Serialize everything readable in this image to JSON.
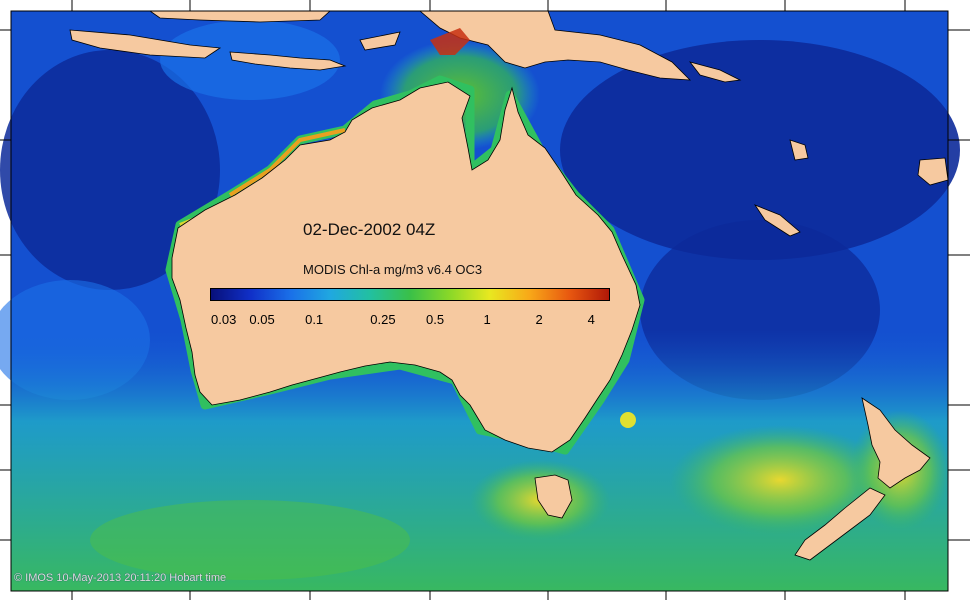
{
  "title": {
    "date": "02-Dec-2002 04Z",
    "product": "MODIS Chl-a mg/m3 v6.4 OC3"
  },
  "colorbar": {
    "ticks": [
      "0.03",
      "0.05",
      "0.1",
      "0.25",
      "0.5",
      "1",
      "2",
      "4"
    ],
    "stops": [
      "#08107a",
      "#1030c8",
      "#1a70e8",
      "#20a8e0",
      "#22c0a0",
      "#3ac048",
      "#8ad828",
      "#e8e820",
      "#f8a818",
      "#e85810",
      "#b01808"
    ]
  },
  "credit": "© IMOS 10-May-2013 20:11:20 Hobart time",
  "colors": {
    "land": "#f6c9a0",
    "ocean_deep": "#0c2a9a",
    "ocean_mid": "#1860d8",
    "ocean_light": "#20a8c8",
    "ocean_green": "#38b860",
    "bloom_yellow": "#d8d830",
    "bloom_red": "#c83010"
  }
}
